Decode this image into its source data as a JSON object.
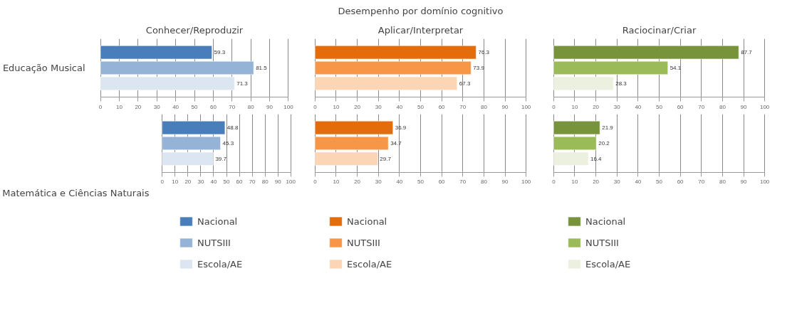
{
  "chart_data": [
    {
      "type": "bar",
      "orientation": "horizontal",
      "title": "Conhecer/Reproduzir",
      "ylabel": "Educação Musical",
      "categories": [
        null
      ],
      "series": [
        {
          "color": "#4a7ebb",
          "values": [
            59.3
          ]
        },
        {
          "color": "#95b3d7",
          "values": [
            81.5
          ]
        },
        {
          "color": "#dce6f2",
          "values": [
            71.3
          ]
        }
      ],
      "xlim": [
        0,
        100
      ],
      "xticks": [
        0,
        10,
        20,
        30,
        40,
        50,
        60,
        70,
        80,
        90,
        100
      ],
      "grid": "x",
      "data_labels": true
    },
    {
      "type": "bar",
      "orientation": "horizontal",
      "title": "Desempenho por domínio cognitivo",
      "subtitle": "Aplicar/Interpretar",
      "categories": [
        null
      ],
      "series": [
        {
          "color": "#e46c0a",
          "values": [
            76.3
          ]
        },
        {
          "color": "#f79646",
          "values": [
            73.9
          ]
        },
        {
          "color": "#fcd5b5",
          "values": [
            67.3
          ]
        }
      ],
      "xlim": [
        0,
        100
      ],
      "xticks": [
        0,
        10,
        20,
        30,
        40,
        50,
        60,
        70,
        80,
        90,
        100
      ],
      "grid": "x",
      "data_labels": true
    },
    {
      "type": "bar",
      "orientation": "horizontal",
      "title": "Raciocinar/Criar",
      "categories": [
        null
      ],
      "series": [
        {
          "color": "#77933c",
          "values": [
            87.7
          ]
        },
        {
          "color": "#9bbb59",
          "values": [
            54.1
          ]
        },
        {
          "color": "#ebf1de",
          "values": [
            28.3
          ]
        }
      ],
      "xlim": [
        0,
        100
      ],
      "xticks": [
        0,
        10,
        20,
        30,
        40,
        50,
        60,
        70,
        80,
        90,
        100
      ],
      "grid": "x",
      "data_labels": true
    },
    {
      "type": "bar",
      "orientation": "horizontal",
      "ylabel": "Matemática e Ciências Naturais",
      "categories": [
        null
      ],
      "series": [
        {
          "name": "Nacional",
          "color": "#4a7ebb",
          "values": [
            48.8
          ]
        },
        {
          "name": "NUTSIII",
          "color": "#95b3d7",
          "values": [
            45.3
          ]
        },
        {
          "name": "Escola/AE",
          "color": "#dce6f2",
          "values": [
            39.7
          ]
        }
      ],
      "xlim": [
        0,
        100
      ],
      "xticks": [
        0,
        10,
        20,
        30,
        40,
        50,
        60,
        70,
        80,
        90,
        100
      ],
      "grid": "x",
      "data_labels": true,
      "legend": "bottom"
    },
    {
      "type": "bar",
      "orientation": "horizontal",
      "categories": [
        null
      ],
      "series": [
        {
          "name": "Nacional",
          "color": "#e46c0a",
          "values": [
            36.9
          ]
        },
        {
          "name": "NUTSIII",
          "color": "#f79646",
          "values": [
            34.7
          ]
        },
        {
          "name": "Escola/AE",
          "color": "#fcd5b5",
          "values": [
            29.7
          ]
        }
      ],
      "xlim": [
        0,
        100
      ],
      "xticks": [
        0,
        10,
        20,
        30,
        40,
        50,
        60,
        70,
        80,
        90,
        100
      ],
      "grid": "x",
      "data_labels": true,
      "legend": "bottom"
    },
    {
      "type": "bar",
      "orientation": "horizontal",
      "categories": [
        null
      ],
      "series": [
        {
          "name": "Nacional",
          "color": "#77933c",
          "values": [
            21.9
          ]
        },
        {
          "name": "NUTSIII",
          "color": "#9bbb59",
          "values": [
            20.2
          ]
        },
        {
          "name": "Escola/AE",
          "color": "#ebf1de",
          "values": [
            16.4
          ]
        }
      ],
      "xlim": [
        0,
        100
      ],
      "xticks": [
        0,
        10,
        20,
        30,
        40,
        50,
        60,
        70,
        80,
        90,
        100
      ],
      "grid": "x",
      "data_labels": true,
      "legend": "bottom"
    }
  ]
}
